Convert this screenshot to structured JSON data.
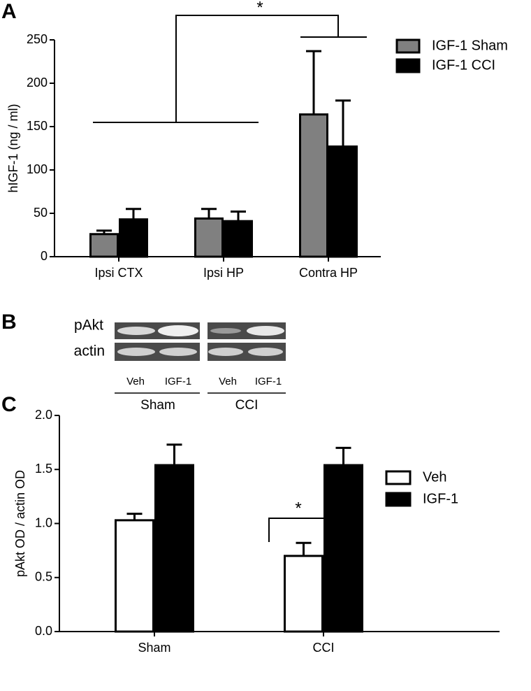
{
  "panels": [
    "A",
    "B",
    "C"
  ],
  "chart_data": [
    {
      "type": "bar",
      "y_label": "hIGF-1 (ng / ml)",
      "categories": [
        "Ipsi CTX",
        "Ipsi HP",
        "Contra HP"
      ],
      "series": [
        {
          "name": "IGF-1 Sham",
          "color": "#808080",
          "values": [
            26,
            44,
            164
          ],
          "errors": [
            4,
            11,
            73
          ]
        },
        {
          "name": "IGF-1 CCI",
          "color": "#000000",
          "values": [
            43,
            41,
            127
          ],
          "errors": [
            12,
            11,
            53
          ]
        }
      ],
      "ylim": [
        0,
        250
      ],
      "yticks": [
        0,
        50,
        100,
        150,
        200,
        250
      ],
      "annotations": [
        "*"
      ]
    },
    {
      "type": "bar",
      "y_label": "pAkt OD / actin OD",
      "categories": [
        "Sham",
        "CCI"
      ],
      "series": [
        {
          "name": "Veh",
          "color": "#ffffff",
          "values": [
            1.03,
            0.7
          ],
          "errors": [
            0.06,
            0.12
          ]
        },
        {
          "name": "IGF-1",
          "color": "#000000",
          "values": [
            1.54,
            1.54
          ],
          "errors": [
            0.19,
            0.16
          ]
        }
      ],
      "ylim": [
        0,
        2
      ],
      "yticks": [
        {
          "value": 0,
          "label": "0.0"
        },
        {
          "value": 0.5,
          "label": "0.5"
        },
        {
          "value": 1,
          "label": "1.0"
        },
        {
          "value": 1.5,
          "label": "1.5"
        },
        {
          "value": 2,
          "label": "2.0"
        }
      ],
      "annotations": [
        "*"
      ]
    }
  ],
  "blot": {
    "rows": [
      "pAkt",
      "actin"
    ],
    "lanes": [
      "Veh",
      "IGF-1",
      "Veh",
      "IGF-1"
    ],
    "groups": [
      "Sham",
      "CCI"
    ]
  }
}
